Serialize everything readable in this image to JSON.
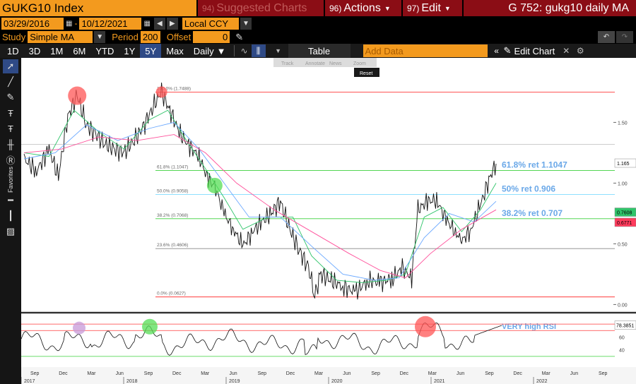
{
  "header": {
    "ticker": "GUKG10 Index",
    "menus": [
      {
        "num": "94)",
        "label": "Suggested Charts",
        "dim": true
      },
      {
        "num": "96)",
        "label": "Actions",
        "dim": false
      },
      {
        "num": "97)",
        "label": "Edit",
        "dim": false
      }
    ],
    "title": "G 752: gukg10 daily MA"
  },
  "range": {
    "start": "03/29/2016",
    "end": "10/12/2021",
    "currency": "Local CCY"
  },
  "study": {
    "label": "Study",
    "name": "Simple MA",
    "period_label": "Period",
    "period": "200",
    "offset_label": "Offset",
    "offset": "0"
  },
  "toolbar": {
    "periods": [
      "1D",
      "3D",
      "1M",
      "6M",
      "YTD",
      "1Y",
      "5Y",
      "Max"
    ],
    "active_period": "5Y",
    "frequency": "Daily",
    "table_label": "Table",
    "add_data_placeholder": "Add Data",
    "edit_chart_label": "Edit Chart"
  },
  "overlay_tools": {
    "track": "Track",
    "annotate": "Annotate",
    "news": "News",
    "zoom": "Zoom",
    "reset": "Reset"
  },
  "sidebar": {
    "favorites_label": "Favorites"
  },
  "chart_data": {
    "type": "line",
    "x_axis": {
      "months": [
        "Sep",
        "Dec",
        "Mar",
        "Jun",
        "Sep",
        "Dec",
        "Mar",
        "Jun",
        "Sep",
        "Dec",
        "Mar",
        "Jun",
        "Sep",
        "Dec",
        "Mar",
        "Jun",
        "Sep",
        "Dec",
        "Mar",
        "Jun",
        "Sep"
      ],
      "years": [
        "2017",
        "2018",
        "2019",
        "2020",
        "2021",
        "2022"
      ]
    },
    "y_axis": {
      "ticks": [
        "1.50",
        "1.00",
        "0.50",
        "0.00"
      ],
      "ylim": [
        -0.05,
        1.95
      ]
    },
    "series": [
      {
        "name": "",
        "color": "#ffffff",
        "points": [
          [
            0,
            1.2
          ],
          [
            4,
            1.1
          ],
          [
            8,
            1.28
          ],
          [
            11,
            1.05
          ],
          [
            14,
            1.55
          ],
          [
            17,
            1.72
          ],
          [
            20,
            1.48
          ],
          [
            23,
            1.4
          ],
          [
            26,
            1.32
          ],
          [
            29,
            1.28
          ],
          [
            32,
            1.25
          ],
          [
            35,
            1.35
          ],
          [
            38,
            1.45
          ],
          [
            41,
            1.62
          ],
          [
            44,
            1.75
          ],
          [
            47,
            1.58
          ],
          [
            50,
            1.4
          ],
          [
            53,
            1.3
          ],
          [
            56,
            1.22
          ],
          [
            59,
            1.02
          ],
          [
            61,
            0.98
          ],
          [
            64,
            0.75
          ],
          [
            67,
            0.62
          ],
          [
            70,
            0.48
          ],
          [
            73,
            0.6
          ],
          [
            76,
            0.68
          ],
          [
            79,
            0.75
          ],
          [
            82,
            0.85
          ],
          [
            85,
            0.62
          ],
          [
            88,
            0.45
          ],
          [
            91,
            0.3
          ],
          [
            93,
            0.08
          ],
          [
            95,
            0.25
          ],
          [
            98,
            0.2
          ],
          [
            102,
            0.15
          ],
          [
            106,
            0.1
          ],
          [
            110,
            0.2
          ],
          [
            114,
            0.18
          ],
          [
            118,
            0.22
          ],
          [
            121,
            0.3
          ],
          [
            124,
            0.22
          ],
          [
            126,
            0.78
          ],
          [
            129,
            0.85
          ],
          [
            132,
            0.86
          ],
          [
            135,
            0.7
          ],
          [
            138,
            0.6
          ],
          [
            140,
            0.52
          ],
          [
            143,
            0.62
          ],
          [
            146,
            0.82
          ],
          [
            149,
            1.05
          ],
          [
            151,
            1.16
          ]
        ]
      },
      {
        "name": "",
        "color": "#2fc46a",
        "points": [
          [
            0,
            1.25
          ],
          [
            8,
            1.22
          ],
          [
            16,
            1.6
          ],
          [
            24,
            1.42
          ],
          [
            32,
            1.28
          ],
          [
            40,
            1.52
          ],
          [
            46,
            1.6
          ],
          [
            52,
            1.35
          ],
          [
            58,
            1.12
          ],
          [
            64,
            0.88
          ],
          [
            70,
            0.62
          ],
          [
            78,
            0.72
          ],
          [
            86,
            0.72
          ],
          [
            92,
            0.4
          ],
          [
            100,
            0.2
          ],
          [
            108,
            0.18
          ],
          [
            116,
            0.2
          ],
          [
            122,
            0.25
          ],
          [
            128,
            0.72
          ],
          [
            134,
            0.8
          ],
          [
            140,
            0.6
          ],
          [
            146,
            0.78
          ],
          [
            151,
            1.0
          ]
        ]
      },
      {
        "name": "",
        "color": "#6aa8ff",
        "points": [
          [
            0,
            1.2
          ],
          [
            10,
            1.25
          ],
          [
            20,
            1.48
          ],
          [
            30,
            1.35
          ],
          [
            40,
            1.45
          ],
          [
            48,
            1.5
          ],
          [
            56,
            1.28
          ],
          [
            64,
            1.0
          ],
          [
            72,
            0.72
          ],
          [
            82,
            0.72
          ],
          [
            92,
            0.48
          ],
          [
            102,
            0.25
          ],
          [
            112,
            0.2
          ],
          [
            120,
            0.22
          ],
          [
            128,
            0.55
          ],
          [
            136,
            0.75
          ],
          [
            144,
            0.68
          ],
          [
            151,
            0.85
          ]
        ]
      },
      {
        "name": "",
        "color": "#ff4f9a",
        "points": [
          [
            0,
            1.25
          ],
          [
            12,
            1.28
          ],
          [
            24,
            1.38
          ],
          [
            36,
            1.35
          ],
          [
            48,
            1.4
          ],
          [
            58,
            1.25
          ],
          [
            68,
            1.0
          ],
          [
            80,
            0.78
          ],
          [
            92,
            0.6
          ],
          [
            104,
            0.42
          ],
          [
            114,
            0.28
          ],
          [
            122,
            0.22
          ],
          [
            130,
            0.42
          ],
          [
            140,
            0.62
          ],
          [
            151,
            0.78
          ]
        ]
      }
    ],
    "fib_levels": [
      {
        "label": "100.0% (1.7488)",
        "value": 1.7488,
        "color": "#ff3b3b"
      },
      {
        "label": "61.8% (1.1047)",
        "value": 1.1047,
        "color": "#3ad13a"
      },
      {
        "label": "50.0% (0.9058)",
        "value": 0.9058,
        "color": "#7fdcff"
      },
      {
        "label": "38.2% (0.7068)",
        "value": 0.7068,
        "color": "#3ad13a"
      },
      {
        "label": "23.6% (0.4606)",
        "value": 0.4606,
        "color": "#888888"
      },
      {
        "label": "0.0% (0.0627)",
        "value": 0.0627,
        "color": "#ff3b3b"
      }
    ],
    "annotations": [
      "61.8% ret 1.1047",
      "50% ret 0.906",
      "38.2% ret 0.707",
      "VERY high RSI"
    ],
    "price_badges": [
      {
        "label": "1.165",
        "value": 1.165,
        "bg": "#ffffff",
        "fg": "#000000"
      },
      {
        "label": "0.7608",
        "value": 0.7608,
        "bg": "#2fc46a",
        "fg": "#000000"
      },
      {
        "label": "0.6771",
        "value": 0.6771,
        "bg": "#ff3b5c",
        "fg": "#000000"
      }
    ],
    "rsi": {
      "ticks": [
        "60",
        "40"
      ],
      "last": "78.3851",
      "ylim": [
        20,
        90
      ],
      "overbought": 70,
      "oversold": 30
    }
  }
}
